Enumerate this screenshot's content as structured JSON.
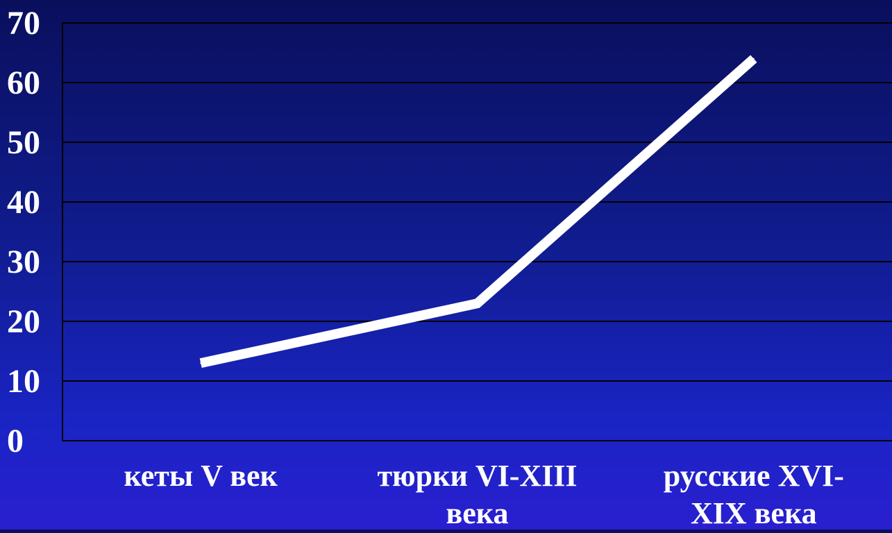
{
  "chart_data": {
    "type": "line",
    "categories": [
      "кеты V век",
      "тюрки VI-XIII века",
      "русские XVI-XIX века"
    ],
    "category_lines": [
      [
        "кеты V век"
      ],
      [
        "тюрки VI-XIII",
        "века"
      ],
      [
        "русские XVI-",
        "XIX века"
      ]
    ],
    "series": [
      {
        "values": [
          13,
          23,
          64
        ]
      }
    ],
    "ylim": [
      0,
      70
    ],
    "yticks": [
      0,
      10,
      20,
      30,
      40,
      50,
      60,
      70
    ],
    "grid": true,
    "legend": false,
    "title": "",
    "xlabel": "",
    "ylabel": ""
  },
  "colors": {
    "line": "#ffffff",
    "grid": "#000000",
    "text": "#ffffff"
  }
}
